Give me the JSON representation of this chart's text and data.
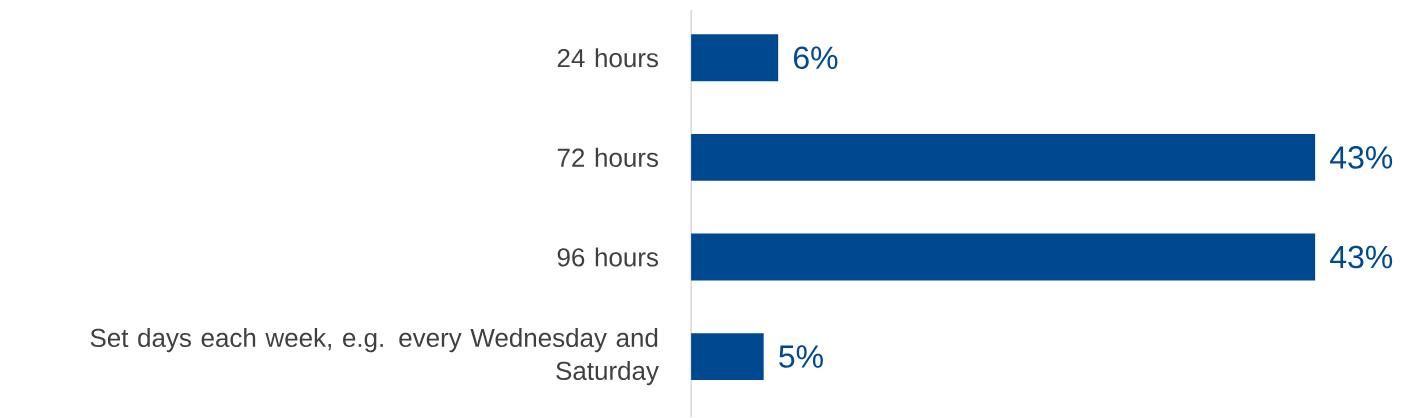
{
  "chart_data": {
    "type": "bar",
    "orientation": "horizontal",
    "categories": [
      "24 hours",
      "72 hours",
      "96 hours",
      "Set days each week, e.g. every Wednesday and Saturday"
    ],
    "values": [
      6,
      43,
      43,
      5
    ],
    "value_labels": [
      "6%",
      "43%",
      "43%",
      "5%"
    ],
    "color": "#004990",
    "xlim": [
      0,
      43
    ]
  }
}
